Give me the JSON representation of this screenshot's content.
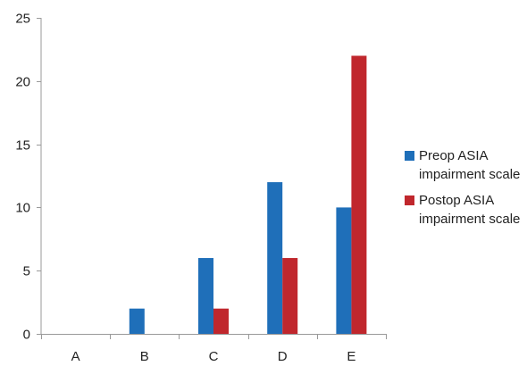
{
  "chart_data": {
    "type": "bar",
    "categories": [
      "A",
      "B",
      "C",
      "D",
      "E"
    ],
    "series": [
      {
        "name": "Preop ASIA impairment scale",
        "values": [
          0,
          2,
          6,
          12,
          10
        ],
        "color": "#1f6fb9"
      },
      {
        "name": "Postop ASIA impairment scale",
        "values": [
          0,
          0,
          2,
          6,
          22
        ],
        "color": "#c0272d"
      }
    ],
    "ylim": [
      0,
      25
    ],
    "yticks": [
      0,
      5,
      10,
      15,
      20,
      25
    ],
    "legend_position": "right",
    "grid": false
  }
}
